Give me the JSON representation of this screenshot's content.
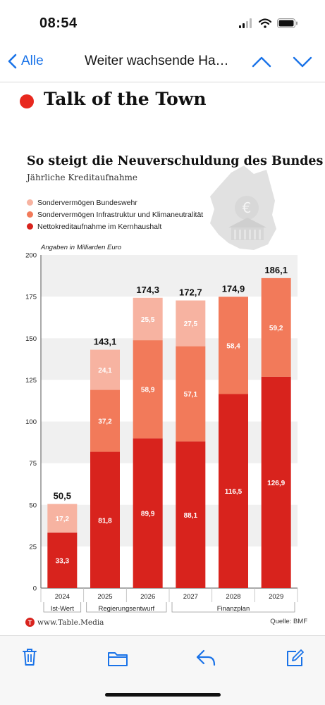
{
  "status_bar": {
    "time": "08:54"
  },
  "nav": {
    "back_label": "Alle",
    "title": "Weiter wachsende Ha…"
  },
  "article": {
    "headline": "Talk of the Town"
  },
  "chart_data": {
    "type": "bar",
    "stacked": true,
    "title": "So steigt die Neuverschuldung des Bundes",
    "subtitle": "Jährliche Kreditaufnahme",
    "unit_note": "Angaben in Milliarden Euro",
    "categories": [
      "2024",
      "2025",
      "2026",
      "2027",
      "2028",
      "2029"
    ],
    "category_groups": [
      {
        "label": "Ist-Wert",
        "from": 0,
        "to": 0
      },
      {
        "label": "Regierungsentwurf",
        "from": 1,
        "to": 2
      },
      {
        "label": "Finanzplan",
        "from": 3,
        "to": 5
      }
    ],
    "series": [
      {
        "name": "Nettokreditaufnahme im Kernhaushalt",
        "color": "#d8231d",
        "values": [
          33.3,
          81.8,
          89.9,
          88.1,
          116.5,
          126.9
        ],
        "labels": [
          "33,3",
          "81,8",
          "89,9",
          "88,1",
          "116,5",
          "126,9"
        ]
      },
      {
        "name": "Sondervermögen Infrastruktur und Klimaneutralität",
        "color": "#f27a5a",
        "values": [
          0,
          37.2,
          58.9,
          57.1,
          58.4,
          59.2
        ],
        "labels": [
          "",
          "37,2",
          "58,9",
          "57,1",
          "58,4",
          "59,2"
        ]
      },
      {
        "name": "Sondervermögen Bundeswehr",
        "color": "#f7b3a1",
        "values": [
          17.2,
          24.1,
          25.5,
          27.5,
          0,
          0
        ],
        "labels": [
          "17,2",
          "24,1",
          "25,5",
          "27,5",
          "",
          ""
        ]
      }
    ],
    "legend_order": [
      2,
      1,
      0
    ],
    "totals": [
      "50,5",
      "143,1",
      "174,3",
      "172,7",
      "174,9",
      "186,1"
    ],
    "ylim": [
      0,
      200
    ],
    "yticks": [
      0,
      25,
      50,
      75,
      100,
      125,
      150,
      175,
      200
    ],
    "grid": "alternating horizontal bands",
    "legend_position": "top-left",
    "source": "Quelle: BMF",
    "brand": "www.Table.Media"
  }
}
